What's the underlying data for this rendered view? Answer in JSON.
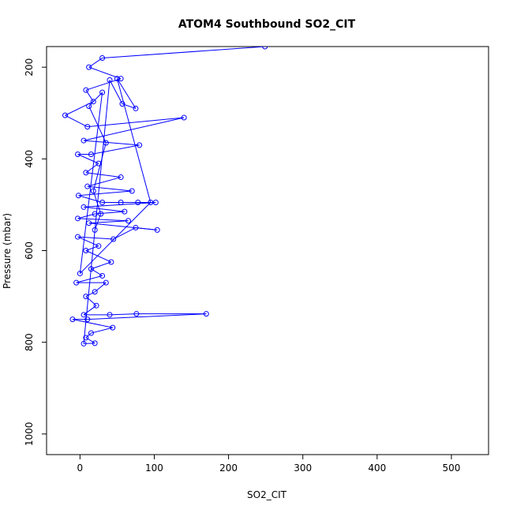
{
  "chart_data": {
    "type": "line",
    "title": "ATOM4 Southbound SO2_CIT",
    "xlabel": "SO2_CIT",
    "ylabel": "Pressure (mbar)",
    "xlim": [
      -45,
      550
    ],
    "ylim_reversed": [
      1045,
      155
    ],
    "xticks": [
      0,
      100,
      200,
      300,
      400,
      500
    ],
    "yticks": [
      200,
      400,
      600,
      800,
      1000
    ],
    "y_axis_inverted": true,
    "grid": false,
    "marker": "open-circle",
    "line_color": "#0000ff",
    "series": [
      {
        "points": [
          [
            249,
            155
          ],
          [
            30,
            180
          ],
          [
            12,
            200
          ],
          [
            55,
            225
          ],
          [
            8,
            250
          ],
          [
            18,
            275
          ],
          [
            -20,
            305
          ],
          [
            10,
            330
          ],
          [
            140,
            310
          ],
          [
            5,
            360
          ],
          [
            80,
            370
          ],
          [
            15,
            390
          ],
          [
            -3,
            390
          ],
          [
            25,
            410
          ],
          [
            8,
            430
          ],
          [
            55,
            440
          ],
          [
            10,
            460
          ],
          [
            70,
            470
          ],
          [
            -2,
            480
          ],
          [
            30,
            495
          ],
          [
            55,
            495
          ],
          [
            78,
            495
          ],
          [
            102,
            495
          ],
          [
            5,
            505
          ],
          [
            60,
            515
          ],
          [
            20,
            520
          ],
          [
            -3,
            530
          ],
          [
            65,
            535
          ],
          [
            12,
            540
          ],
          [
            104,
            555
          ],
          [
            75,
            550
          ],
          [
            45,
            575
          ],
          [
            -3,
            570
          ],
          [
            25,
            590
          ],
          [
            8,
            600
          ],
          [
            42,
            625
          ],
          [
            15,
            640
          ],
          [
            30,
            655
          ],
          [
            -5,
            670
          ],
          [
            35,
            670
          ],
          [
            20,
            690
          ],
          [
            8,
            700
          ],
          [
            22,
            720
          ],
          [
            5,
            740
          ],
          [
            40,
            740
          ],
          [
            76,
            738
          ],
          [
            170,
            738
          ],
          [
            10,
            750
          ],
          [
            -10,
            750
          ],
          [
            44,
            768
          ],
          [
            15,
            780
          ],
          [
            8,
            790
          ],
          [
            20,
            802
          ],
          [
            5,
            803
          ],
          [
            40,
            228
          ],
          [
            57,
            280
          ],
          [
            75,
            290
          ],
          [
            50,
            225
          ],
          [
            95,
            495
          ],
          [
            0,
            650
          ],
          [
            30,
            255
          ],
          [
            12,
            285
          ],
          [
            35,
            365
          ],
          [
            18,
            470
          ],
          [
            28,
            520
          ],
          [
            20,
            555
          ]
        ]
      }
    ]
  }
}
